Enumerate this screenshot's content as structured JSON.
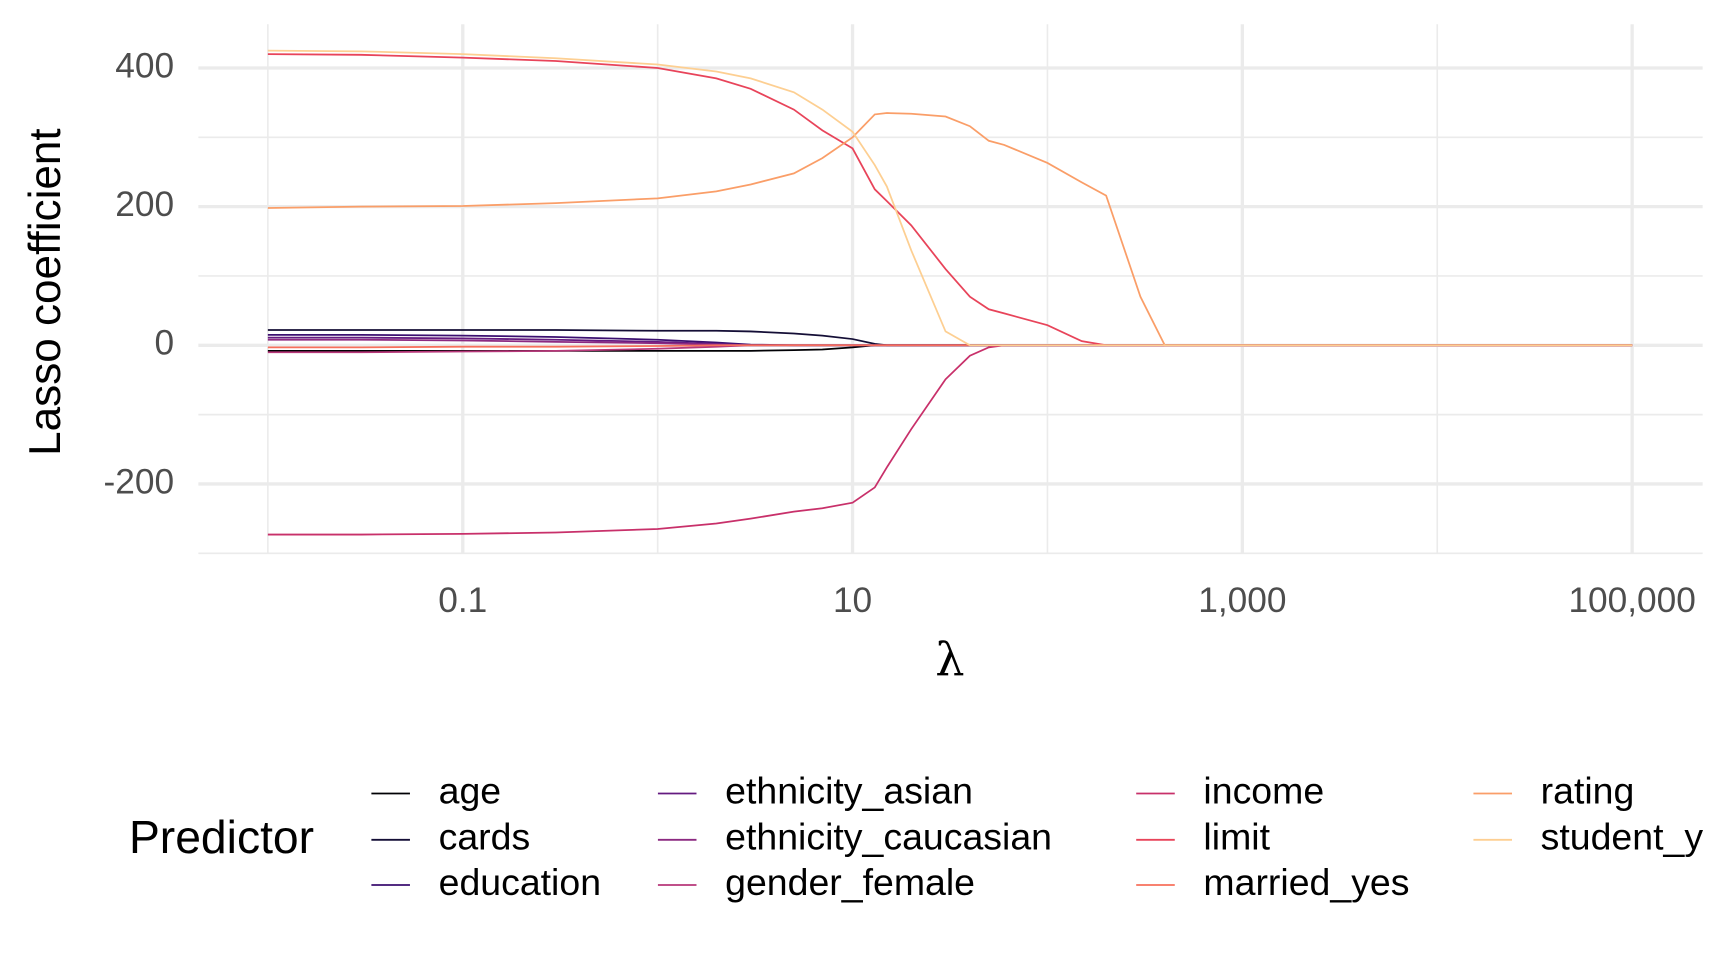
{
  "chart_data": {
    "type": "line",
    "x_label": "λ",
    "y_label": "Lasso coefficient",
    "legend_title": "Predictor",
    "legend_position": "bottom",
    "log_x": true,
    "grid": true,
    "xlim": [
      0.0044,
      230000
    ],
    "xticks": [
      0.1,
      10,
      {
        "value": 1000,
        "label": "1,000"
      },
      {
        "value": 100000,
        "label": "100,000"
      }
    ],
    "xminor": [
      0.01,
      1,
      100,
      10000
    ],
    "ylim": [
      -300,
      463
    ],
    "yticks": [
      -200,
      0,
      200,
      400
    ],
    "yminor": [
      -300,
      -100,
      100,
      300
    ],
    "x": [
      0.01,
      0.03,
      0.1,
      0.3,
      1,
      2,
      3,
      5,
      7,
      10,
      13,
      15,
      20,
      30,
      40,
      50,
      60,
      100,
      150,
      200,
      300,
      400,
      1000,
      10000,
      100000
    ],
    "series": [
      {
        "name": "age",
        "color": "#000004",
        "values": [
          -8,
          -8,
          -8,
          -8,
          -8,
          -8,
          -8,
          -7,
          -6,
          -3,
          0,
          0,
          0,
          0,
          0,
          0,
          0,
          0,
          0,
          0,
          0,
          0,
          0,
          0,
          0
        ]
      },
      {
        "name": "cards",
        "color": "#140e36",
        "values": [
          22,
          22,
          22,
          22,
          21,
          21,
          20,
          17,
          14,
          9,
          2,
          0,
          0,
          0,
          0,
          0,
          0,
          0,
          0,
          0,
          0,
          0,
          0,
          0,
          0
        ]
      },
      {
        "name": "education",
        "color": "#3b0f70",
        "values": [
          15,
          15,
          14,
          12,
          8,
          4,
          1,
          0,
          0,
          0,
          0,
          0,
          0,
          0,
          0,
          0,
          0,
          0,
          0,
          0,
          0,
          0,
          0,
          0,
          0
        ]
      },
      {
        "name": "ethnicity_asian",
        "color": "#641a80",
        "values": [
          11,
          11,
          10,
          8,
          5,
          2,
          0,
          0,
          0,
          0,
          0,
          0,
          0,
          0,
          0,
          0,
          0,
          0,
          0,
          0,
          0,
          0,
          0,
          0,
          0
        ]
      },
      {
        "name": "ethnicity_caucasian",
        "color": "#8c2981",
        "values": [
          8,
          8,
          7,
          5,
          3,
          1,
          0,
          0,
          0,
          0,
          0,
          0,
          0,
          0,
          0,
          0,
          0,
          0,
          0,
          0,
          0,
          0,
          0,
          0,
          0
        ]
      },
      {
        "name": "gender_female",
        "color": "#b73779",
        "values": [
          -10,
          -10,
          -9,
          -8,
          -5,
          -2,
          0,
          0,
          0,
          0,
          0,
          0,
          0,
          0,
          0,
          0,
          0,
          0,
          0,
          0,
          0,
          0,
          0,
          0,
          0
        ]
      },
      {
        "name": "income",
        "color": "#c8306a",
        "values": [
          -273,
          -273,
          -272,
          -270,
          -265,
          -257,
          -250,
          -240,
          -235,
          -227,
          -205,
          -176,
          -121,
          -49,
          -15,
          -3,
          0,
          0,
          0,
          0,
          0,
          0,
          0,
          0,
          0
        ]
      },
      {
        "name": "limit",
        "color": "#e8445a",
        "values": [
          420,
          419,
          415,
          410,
          400,
          385,
          370,
          340,
          310,
          284,
          225,
          208,
          173,
          110,
          70,
          52,
          46,
          29,
          6,
          0,
          0,
          0,
          0,
          0,
          0
        ]
      },
      {
        "name": "married_yes",
        "color": "#f7705c",
        "values": [
          -3,
          -3,
          -2,
          -2,
          -1,
          0,
          0,
          0,
          0,
          0,
          0,
          0,
          0,
          0,
          0,
          0,
          0,
          0,
          0,
          0,
          0,
          0,
          0,
          0,
          0
        ]
      },
      {
        "name": "rating",
        "color": "#fa9e68",
        "values": [
          198,
          200,
          201,
          205,
          212,
          222,
          232,
          248,
          270,
          300,
          333,
          335,
          334,
          330,
          316,
          295,
          289,
          263,
          235,
          216,
          70,
          0,
          0,
          0,
          0
        ]
      },
      {
        "name": "student_y",
        "color": "#fdcf92",
        "values": [
          425,
          424,
          420,
          414,
          405,
          395,
          385,
          365,
          340,
          308,
          260,
          229,
          137,
          20,
          0,
          0,
          0,
          0,
          0,
          0,
          0,
          0,
          0,
          0,
          0
        ]
      }
    ]
  }
}
